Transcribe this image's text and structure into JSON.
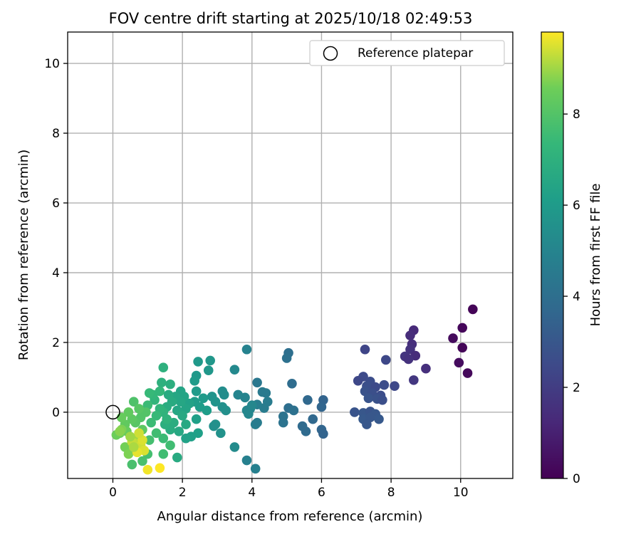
{
  "chart_data": {
    "type": "scatter",
    "title": "FOV centre drift starting at 2025/10/18 02:49:53",
    "xlabel": "Angular distance from reference (arcmin)",
    "ylabel": "Rotation from reference (arcmin)",
    "xlim": [
      -1.3,
      11.5
    ],
    "ylim": [
      -1.9,
      10.9
    ],
    "xticks": [
      0,
      2,
      4,
      6,
      8,
      10
    ],
    "yticks": [
      0,
      2,
      4,
      6,
      8,
      10
    ],
    "grid": true,
    "legend": {
      "label": "Reference platepar",
      "location": "top-right",
      "marker": "open-circle"
    },
    "reference_point": {
      "x": 0,
      "y": 0
    },
    "colorbar": {
      "label": "Hours from first FF file",
      "colormap": "viridis",
      "range": [
        0,
        9.8
      ],
      "ticks": [
        0,
        2,
        4,
        6,
        8
      ]
    },
    "points": [
      [
        10.35,
        2.95,
        0.1
      ],
      [
        10.05,
        2.42,
        0.2
      ],
      [
        9.78,
        2.12,
        0.3
      ],
      [
        10.05,
        1.85,
        0.15
      ],
      [
        9.95,
        1.42,
        0.35
      ],
      [
        10.2,
        1.12,
        0.25
      ],
      [
        8.65,
        2.35,
        1.3
      ],
      [
        8.55,
        2.2,
        1.4
      ],
      [
        8.6,
        1.95,
        1.5
      ],
      [
        8.55,
        1.8,
        1.6
      ],
      [
        8.7,
        1.62,
        1.4
      ],
      [
        8.4,
        1.6,
        1.7
      ],
      [
        8.5,
        1.52,
        1.6
      ],
      [
        9.0,
        1.25,
        1.5
      ],
      [
        8.65,
        0.92,
        1.8
      ],
      [
        7.25,
        1.8,
        2.3
      ],
      [
        7.85,
        1.5,
        2.4
      ],
      [
        7.2,
        1.02,
        2.5
      ],
      [
        7.4,
        0.88,
        2.6
      ],
      [
        7.05,
        0.9,
        2.4
      ],
      [
        7.3,
        0.75,
        2.7
      ],
      [
        7.55,
        0.72,
        2.5
      ],
      [
        7.8,
        0.78,
        2.6
      ],
      [
        8.1,
        0.75,
        2.4
      ],
      [
        7.25,
        0.6,
        2.8
      ],
      [
        7.45,
        0.55,
        2.7
      ],
      [
        7.7,
        0.48,
        2.6
      ],
      [
        7.35,
        0.4,
        2.9
      ],
      [
        7.6,
        0.38,
        2.8
      ],
      [
        7.75,
        0.35,
        2.7
      ],
      [
        6.95,
        0.0,
        2.9
      ],
      [
        7.2,
        -0.02,
        3.0
      ],
      [
        7.4,
        0.02,
        2.9
      ],
      [
        7.55,
        -0.05,
        3.0
      ],
      [
        7.2,
        -0.2,
        3.1
      ],
      [
        7.4,
        -0.15,
        3.0
      ],
      [
        7.65,
        -0.2,
        3.1
      ],
      [
        7.3,
        -0.35,
        3.0
      ],
      [
        6.05,
        0.35,
        3.5
      ],
      [
        6.0,
        0.15,
        3.6
      ],
      [
        6.0,
        -0.5,
        3.6
      ],
      [
        6.05,
        -0.62,
        3.5
      ],
      [
        5.6,
        0.35,
        3.7
      ],
      [
        5.75,
        -0.2,
        3.7
      ],
      [
        5.55,
        -0.55,
        3.8
      ],
      [
        5.45,
        -0.4,
        3.8
      ],
      [
        5.15,
        0.82,
        3.9
      ],
      [
        5.05,
        1.7,
        4.0
      ],
      [
        5.0,
        1.55,
        4.1
      ],
      [
        5.05,
        0.12,
        4.0
      ],
      [
        5.2,
        0.05,
        4.1
      ],
      [
        4.9,
        -0.12,
        4.2
      ],
      [
        4.9,
        -0.3,
        4.2
      ],
      [
        4.15,
        0.85,
        4.4
      ],
      [
        4.3,
        0.58,
        4.5
      ],
      [
        4.4,
        0.55,
        4.5
      ],
      [
        4.45,
        0.3,
        4.6
      ],
      [
        4.35,
        0.12,
        4.6
      ],
      [
        4.15,
        0.22,
        4.7
      ],
      [
        4.1,
        -0.35,
        4.7
      ],
      [
        4.15,
        -0.3,
        4.6
      ],
      [
        4.1,
        -1.62,
        4.8
      ],
      [
        3.85,
        -1.38,
        4.8
      ],
      [
        3.85,
        1.8,
        4.9
      ],
      [
        3.8,
        0.42,
        5.0
      ],
      [
        3.6,
        0.5,
        5.0
      ],
      [
        3.85,
        0.05,
        5.1
      ],
      [
        3.95,
        0.1,
        5.0
      ],
      [
        3.9,
        -0.05,
        5.1
      ],
      [
        4.0,
        0.2,
        5.1
      ],
      [
        3.5,
        1.22,
        5.2
      ],
      [
        3.5,
        -1.0,
        5.3
      ],
      [
        3.15,
        0.6,
        5.4
      ],
      [
        3.2,
        0.5,
        5.4
      ],
      [
        3.15,
        0.15,
        5.5
      ],
      [
        3.25,
        0.05,
        5.5
      ],
      [
        3.1,
        -0.6,
        5.6
      ],
      [
        2.95,
        -0.35,
        5.6
      ],
      [
        2.9,
        -0.4,
        5.5
      ],
      [
        2.95,
        0.3,
        5.7
      ],
      [
        2.85,
        0.45,
        5.7
      ],
      [
        2.8,
        1.48,
        5.8
      ],
      [
        2.75,
        1.2,
        5.8
      ],
      [
        2.45,
        1.45,
        5.9
      ],
      [
        2.4,
        1.05,
        5.9
      ],
      [
        2.35,
        0.9,
        6.0
      ],
      [
        2.4,
        0.6,
        6.0
      ],
      [
        2.6,
        0.4,
        6.0
      ],
      [
        2.7,
        0.05,
        6.1
      ],
      [
        2.5,
        0.15,
        6.1
      ],
      [
        2.35,
        0.3,
        6.1
      ],
      [
        2.4,
        -0.2,
        6.2
      ],
      [
        2.45,
        -0.6,
        6.2
      ],
      [
        2.25,
        -0.7,
        6.2
      ],
      [
        2.1,
        -0.75,
        6.3
      ],
      [
        2.2,
        0.25,
        6.3
      ],
      [
        2.05,
        0.45,
        6.4
      ],
      [
        1.95,
        0.6,
        6.4
      ],
      [
        2.1,
        0.1,
        6.4
      ],
      [
        1.95,
        0.3,
        6.5
      ],
      [
        1.85,
        0.05,
        6.5
      ],
      [
        1.8,
        0.45,
        6.5
      ],
      [
        2.0,
        -0.1,
        6.6
      ],
      [
        2.1,
        -0.35,
        6.6
      ],
      [
        1.9,
        -0.55,
        6.6
      ],
      [
        1.85,
        -1.3,
        6.7
      ],
      [
        1.6,
        0.5,
        6.7
      ],
      [
        1.7,
        0.3,
        6.7
      ],
      [
        1.55,
        0.15,
        6.8
      ],
      [
        1.75,
        -0.3,
        6.8
      ],
      [
        1.65,
        -0.5,
        6.8
      ],
      [
        1.5,
        -0.35,
        6.9
      ],
      [
        1.65,
        0.8,
        6.9
      ],
      [
        1.4,
        0.85,
        7.0
      ],
      [
        1.45,
        1.28,
        7.0
      ],
      [
        1.55,
        -0.2,
        7.1
      ],
      [
        1.45,
        0.0,
        7.1
      ],
      [
        1.35,
        0.1,
        7.2
      ],
      [
        1.2,
        0.35,
        7.2
      ],
      [
        1.35,
        0.6,
        7.3
      ],
      [
        1.15,
        0.5,
        7.3
      ],
      [
        1.25,
        -0.1,
        7.4
      ],
      [
        1.05,
        0.55,
        7.4
      ],
      [
        1.0,
        0.2,
        7.5
      ],
      [
        1.1,
        -0.3,
        7.5
      ],
      [
        1.45,
        -0.75,
        7.5
      ],
      [
        1.25,
        -0.6,
        7.6
      ],
      [
        1.65,
        -0.95,
        7.6
      ],
      [
        1.45,
        -1.2,
        7.6
      ],
      [
        1.05,
        -0.8,
        7.7
      ],
      [
        1.0,
        -1.2,
        7.7
      ],
      [
        0.85,
        -1.4,
        7.8
      ],
      [
        0.55,
        -1.5,
        7.8
      ],
      [
        0.6,
        0.3,
        7.9
      ],
      [
        0.95,
        0.0,
        8.0
      ],
      [
        0.8,
        -0.15,
        8.0
      ],
      [
        0.75,
        0.1,
        8.1
      ],
      [
        0.65,
        -0.3,
        8.1
      ],
      [
        0.85,
        -0.5,
        8.2
      ],
      [
        0.55,
        -0.2,
        8.2
      ],
      [
        0.45,
        0.0,
        8.3
      ],
      [
        0.35,
        -0.35,
        8.3
      ],
      [
        0.25,
        -0.15,
        8.4
      ],
      [
        0.4,
        -0.55,
        8.4
      ],
      [
        0.2,
        -0.6,
        8.5
      ],
      [
        0.1,
        -0.65,
        8.5
      ],
      [
        0.55,
        -0.75,
        8.6
      ],
      [
        0.35,
        -1.0,
        8.6
      ],
      [
        0.45,
        -1.2,
        8.7
      ],
      [
        0.25,
        -0.5,
        8.7
      ],
      [
        0.2,
        -0.55,
        8.8
      ],
      [
        0.75,
        -0.7,
        9.0
      ],
      [
        0.65,
        -0.9,
        9.2
      ],
      [
        0.8,
        -0.95,
        9.4
      ],
      [
        0.55,
        -0.85,
        9.3
      ],
      [
        0.9,
        -1.1,
        9.5
      ],
      [
        0.7,
        -1.15,
        9.6
      ],
      [
        0.6,
        -1.0,
        9.1
      ],
      [
        0.85,
        -0.8,
        9.5
      ],
      [
        1.0,
        -1.65,
        9.7
      ],
      [
        1.35,
        -1.6,
        9.8
      ],
      [
        0.75,
        -0.6,
        9.4
      ],
      [
        0.5,
        -0.7,
        9.0
      ]
    ]
  }
}
